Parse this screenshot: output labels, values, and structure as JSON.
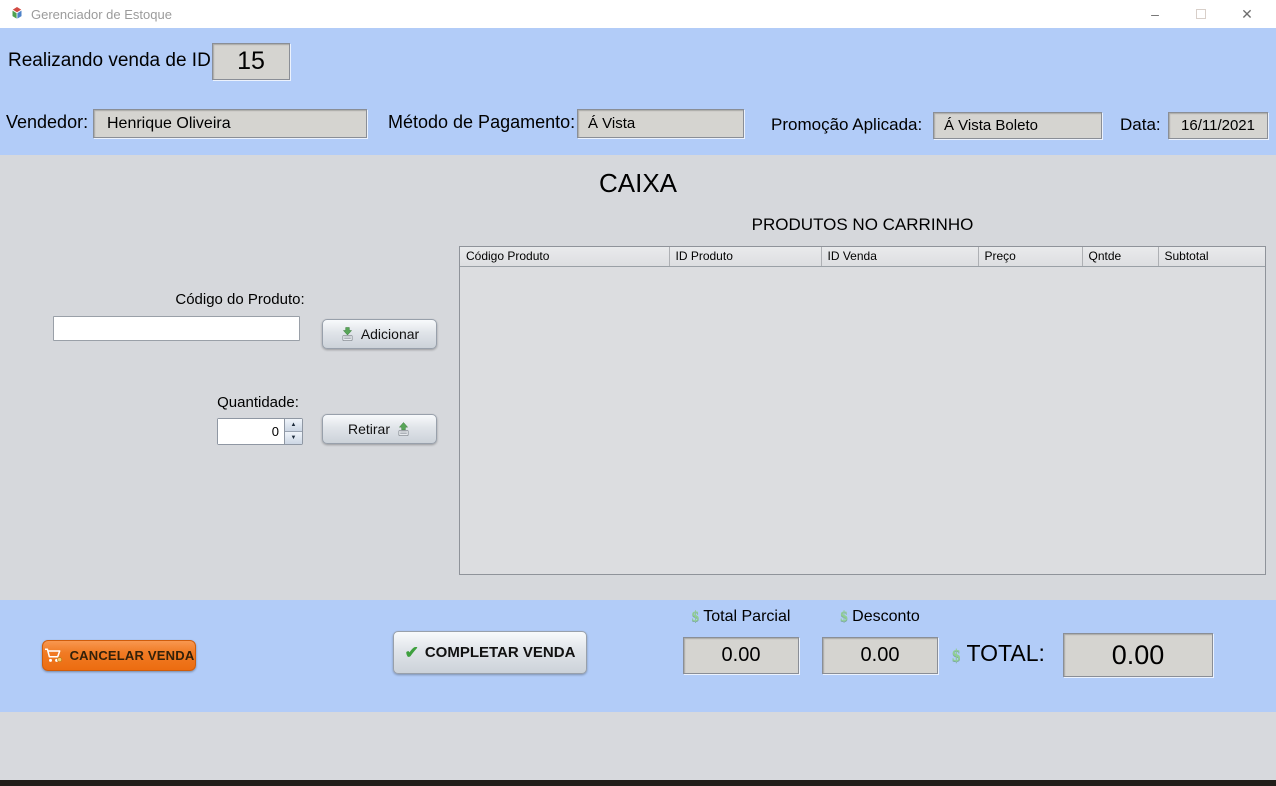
{
  "window": {
    "title": "Gerenciador de Estoque"
  },
  "icons": {
    "minimize": "–",
    "close": "✕",
    "check": "✔",
    "currency": "$",
    "spinner_up": "▲",
    "spinner_down": "▼"
  },
  "colors": {
    "panel_blue": "#b2ccf8",
    "panel_gray": "#d6d8dc",
    "cancel_orange": "#ec6c10",
    "success_green": "#3ea03e",
    "currency_green": "#90cf93"
  },
  "header": {
    "sale_id_label": "Realizando venda de ID:",
    "sale_id_value": "15",
    "vendor_label": "Vendedor:",
    "vendor_value": "Henrique Oliveira",
    "payment_label": "Método de Pagamento:",
    "payment_value": "Á Vista",
    "promo_label": "Promoção Aplicada:",
    "promo_value": "Á Vista Boleto",
    "date_label": "Data:",
    "date_value": "16/11/2021"
  },
  "main": {
    "title": "CAIXA",
    "cart_title": "PRODUTOS NO CARRINHO",
    "table": {
      "columns": [
        "Código Produto",
        "ID Produto",
        "ID Venda",
        "Preço",
        "Qntde",
        "Subtotal"
      ],
      "rows": []
    },
    "product_code_label": "Código do Produto:",
    "product_code_value": "",
    "add_button_label": "Adicionar",
    "quantity_label": "Quantidade:",
    "quantity_value": "0",
    "remove_button_label": "Retirar"
  },
  "footer": {
    "cancel_button_label": "CANCELAR VENDA",
    "complete_button_label": "COMPLETAR VENDA",
    "partial_total_label": "Total Parcial",
    "partial_total_value": "0.00",
    "discount_label": "Desconto",
    "discount_value": "0.00",
    "total_label": "TOTAL:",
    "total_value": "0.00"
  }
}
